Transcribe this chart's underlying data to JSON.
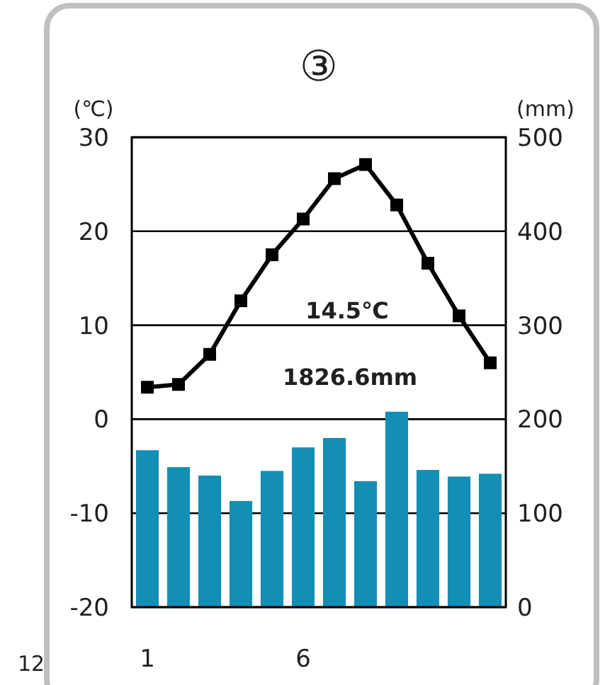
{
  "chart_data": {
    "type": "bar",
    "title": "③",
    "ylabel": "(℃)",
    "y2label": "(mm)",
    "categories": [
      "1",
      null,
      null,
      null,
      null,
      "6",
      null,
      null,
      null,
      null,
      null,
      null
    ],
    "series": [
      {
        "axis": "y2",
        "color": "#138eb4",
        "values": [
          167,
          149,
          140,
          113,
          145,
          170,
          180,
          134,
          208,
          146,
          139,
          142
        ]
      },
      {
        "type": "line",
        "axis": "y",
        "color": "#000000",
        "marker": "square",
        "values": [
          3.4,
          3.7,
          6.9,
          12.6,
          17.5,
          21.3,
          25.6,
          27.1,
          22.8,
          16.6,
          11.0,
          6.0
        ]
      }
    ],
    "ylim": [
      -20,
      30
    ],
    "yticks": [
      -20,
      -10,
      0,
      10,
      20,
      30
    ],
    "y2lim": [
      0,
      500
    ],
    "y2ticks": [
      0,
      100,
      200,
      300,
      400,
      500
    ],
    "grid": "y",
    "annotations": [
      "14.5℃",
      "1826.6mm",
      "12"
    ]
  }
}
